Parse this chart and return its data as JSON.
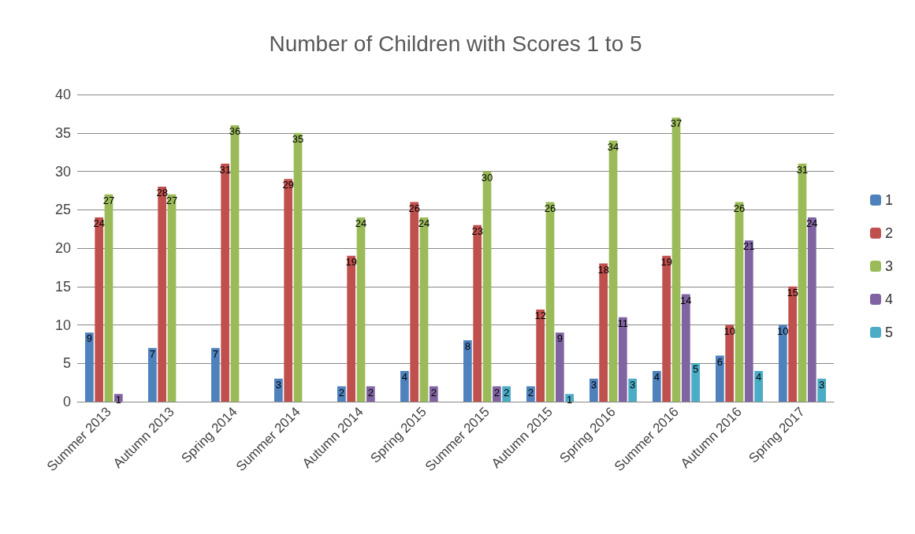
{
  "chart_data": {
    "type": "bar",
    "title": "Number of Children with Scores 1 to 5",
    "categories": [
      "Summer 2013",
      "Autumn 2013",
      "Spring 2014",
      "Summer 2014",
      "Autumn 2014",
      "Spring 2015",
      "Summer 2015",
      "Autumn 2015",
      "Spring 2016",
      "Summer 2016",
      "Autumn 2016",
      "Spring 2017"
    ],
    "series": [
      {
        "name": "1",
        "color": "#4f81bd",
        "values": [
          9,
          7,
          7,
          3,
          2,
          4,
          8,
          2,
          3,
          4,
          6,
          10
        ]
      },
      {
        "name": "2",
        "color": "#c0504d",
        "values": [
          24,
          28,
          31,
          29,
          19,
          26,
          23,
          12,
          18,
          19,
          10,
          15
        ]
      },
      {
        "name": "3",
        "color": "#9bbb59",
        "values": [
          27,
          27,
          36,
          35,
          24,
          24,
          30,
          26,
          34,
          37,
          26,
          31
        ]
      },
      {
        "name": "4",
        "color": "#8064a2",
        "values": [
          1,
          null,
          null,
          null,
          2,
          2,
          2,
          9,
          11,
          14,
          21,
          24
        ]
      },
      {
        "name": "5",
        "color": "#4bacc6",
        "values": [
          null,
          null,
          null,
          null,
          null,
          null,
          2,
          1,
          3,
          5,
          4,
          3
        ]
      }
    ],
    "ylim": [
      0,
      40
    ],
    "yticks": [
      0,
      5,
      10,
      15,
      20,
      25,
      30,
      35,
      40
    ],
    "grid": "y",
    "legend": "right",
    "data_labels": true
  }
}
